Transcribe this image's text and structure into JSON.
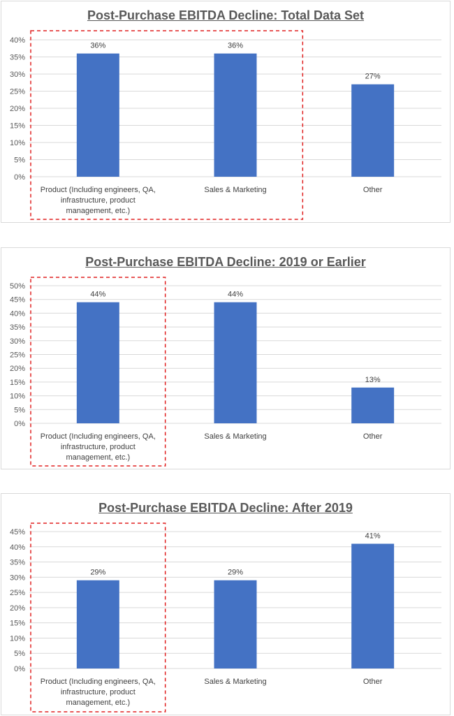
{
  "chart_data": [
    {
      "type": "bar",
      "title": "Post-Purchase EBITDA Decline: Total Data Set",
      "categories": [
        "Product (Including engineers, QA, infrastructure, product management, etc.)",
        "Sales & Marketing",
        "Other"
      ],
      "category_lines": [
        [
          "Product (Including engineers, QA,",
          "infrastructure, product",
          "management, etc.)"
        ],
        [
          "Sales & Marketing"
        ],
        [
          "Other"
        ]
      ],
      "values": [
        36,
        36,
        27
      ],
      "data_labels": [
        "36%",
        "36%",
        "27%"
      ],
      "ylim": [
        0,
        40
      ],
      "yticks": [
        0,
        5,
        10,
        15,
        20,
        25,
        30,
        35,
        40
      ],
      "ytick_labels": [
        "0%",
        "5%",
        "10%",
        "15%",
        "20%",
        "25%",
        "30%",
        "35%",
        "40%"
      ],
      "grid": true,
      "highlight": "dashed box around Product and Sales & Marketing"
    },
    {
      "type": "bar",
      "title": "Post-Purchase EBITDA Decline: 2019 or Earlier",
      "categories": [
        "Product (Including engineers, QA, infrastructure, product management, etc.)",
        "Sales & Marketing",
        "Other"
      ],
      "category_lines": [
        [
          "Product (Including engineers, QA,",
          "infrastructure, product",
          "management, etc.)"
        ],
        [
          "Sales & Marketing"
        ],
        [
          "Other"
        ]
      ],
      "values": [
        44,
        44,
        13
      ],
      "data_labels": [
        "44%",
        "44%",
        "13%"
      ],
      "ylim": [
        0,
        50
      ],
      "yticks": [
        0,
        5,
        10,
        15,
        20,
        25,
        30,
        35,
        40,
        45,
        50
      ],
      "ytick_labels": [
        "0%",
        "5%",
        "10%",
        "15%",
        "20%",
        "25%",
        "30%",
        "35%",
        "40%",
        "45%",
        "50%"
      ],
      "grid": true,
      "highlight": "dashed box around Product"
    },
    {
      "type": "bar",
      "title": "Post-Purchase EBITDA Decline: After 2019",
      "categories": [
        "Product (Including engineers, QA, infrastructure, product management, etc.)",
        "Sales & Marketing",
        "Other"
      ],
      "category_lines": [
        [
          "Product (Including engineers, QA,",
          "infrastructure, product",
          "management, etc.)"
        ],
        [
          "Sales & Marketing"
        ],
        [
          "Other"
        ]
      ],
      "values": [
        29,
        29,
        41
      ],
      "data_labels": [
        "29%",
        "29%",
        "41%"
      ],
      "ylim": [
        0,
        45
      ],
      "yticks": [
        0,
        5,
        10,
        15,
        20,
        25,
        30,
        35,
        40,
        45
      ],
      "ytick_labels": [
        "0%",
        "5%",
        "10%",
        "15%",
        "20%",
        "25%",
        "30%",
        "35%",
        "40%",
        "45%"
      ],
      "grid": true,
      "highlight": "dashed box around Product"
    }
  ],
  "colors": {
    "bar": "#4472c4",
    "grid": "#d9d9d9",
    "highlight": "#e02020"
  }
}
